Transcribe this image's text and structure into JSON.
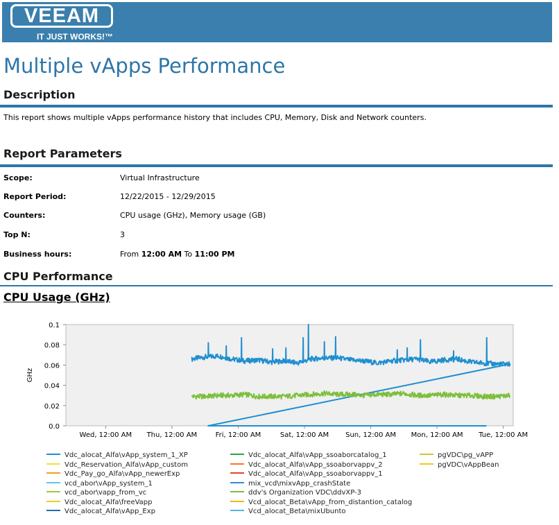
{
  "header": {
    "logo_text": "VEEAM",
    "tagline": "IT JUST WORKS!™",
    "banner_color": "#3a7fad"
  },
  "page_title": "Multiple vApps Performance",
  "description": {
    "heading": "Description",
    "text": "This report shows multiple vApps performance history that includes CPU, Memory, Disk and Network counters."
  },
  "report_parameters": {
    "heading": "Report Parameters",
    "rows": [
      {
        "label": "Scope:",
        "value": "Virtual Infrastructure"
      },
      {
        "label": "Report Period:",
        "value": "12/22/2015 - 12/29/2015"
      },
      {
        "label": "Counters:",
        "value": "CPU usage (GHz), Memory usage (GB)"
      },
      {
        "label": "Top N:",
        "value": "3"
      }
    ],
    "business_hours": {
      "label": "Business hours:",
      "prefix": "From ",
      "start": "12:00 AM",
      "middle": " To ",
      "end": "11:00 PM"
    }
  },
  "cpu_section": {
    "heading": "CPU Performance",
    "chart_title": "CPU Usage (GHz)"
  },
  "chart_data": {
    "type": "line",
    "title": "CPU Usage (GHz)",
    "ylabel": "GHz",
    "xlabel": "",
    "ylim": [
      0,
      0.1
    ],
    "y_ticks": [
      "0.0",
      "0.02",
      "0.04",
      "0.06",
      "0.08",
      "0.1"
    ],
    "x_ticks": [
      "Wed, 12:00 AM",
      "Thu, 12:00 AM",
      "Fri, 12:00 AM",
      "Sat, 12:00 AM",
      "Sun, 12:00 AM",
      "Mon, 12:00 AM",
      "Tue, 12:00 AM"
    ],
    "x_range_days": [
      -0.6,
      6.15
    ],
    "grid": false,
    "legend_position": "bottom",
    "series": [
      {
        "name": "Vdc_alocat_Alfa\\vApp_system_1_XP",
        "color": "#1f8fd0",
        "x_days": [
          1.3,
          1.5,
          1.7,
          1.9,
          2.1,
          2.3,
          2.5,
          2.7,
          2.9,
          3.1,
          3.3,
          3.5,
          3.7,
          3.9,
          4.1,
          4.3,
          4.5,
          4.7,
          4.9,
          5.1,
          5.3,
          5.5,
          5.7,
          5.9,
          6.1
        ],
        "values": [
          0.066,
          0.068,
          0.069,
          0.066,
          0.064,
          0.065,
          0.063,
          0.064,
          0.062,
          0.066,
          0.067,
          0.067,
          0.065,
          0.064,
          0.062,
          0.064,
          0.065,
          0.066,
          0.063,
          0.065,
          0.066,
          0.063,
          0.062,
          0.061,
          0.061
        ],
        "spikes": [
          {
            "x_day": 1.55,
            "value": 0.082
          },
          {
            "x_day": 1.82,
            "value": 0.079
          },
          {
            "x_day": 2.05,
            "value": 0.087
          },
          {
            "x_day": 2.52,
            "value": 0.076
          },
          {
            "x_day": 2.72,
            "value": 0.077
          },
          {
            "x_day": 2.98,
            "value": 0.087
          },
          {
            "x_day": 3.06,
            "value": 0.1
          },
          {
            "x_day": 3.3,
            "value": 0.083
          },
          {
            "x_day": 3.47,
            "value": 0.088
          },
          {
            "x_day": 4.4,
            "value": 0.075
          },
          {
            "x_day": 4.55,
            "value": 0.077
          },
          {
            "x_day": 4.75,
            "value": 0.085
          },
          {
            "x_day": 5.25,
            "value": 0.074
          },
          {
            "x_day": 5.75,
            "value": 0.087
          }
        ]
      },
      {
        "name": "ddv's Organization VDC\\ddvXP-3",
        "color": "#7dbf3c",
        "x_days": [
          1.3,
          1.5,
          1.7,
          1.9,
          2.1,
          2.3,
          2.5,
          2.7,
          2.9,
          3.1,
          3.3,
          3.5,
          3.7,
          3.9,
          4.1,
          4.3,
          4.5,
          4.7,
          4.9,
          5.1,
          5.3,
          5.5,
          5.7,
          5.9,
          6.1
        ],
        "values": [
          0.029,
          0.029,
          0.03,
          0.03,
          0.031,
          0.029,
          0.029,
          0.029,
          0.03,
          0.031,
          0.032,
          0.031,
          0.031,
          0.03,
          0.031,
          0.031,
          0.032,
          0.03,
          0.03,
          0.031,
          0.03,
          0.03,
          0.029,
          0.029,
          0.03
        ]
      }
    ]
  },
  "legend": [
    {
      "label": "Vdc_alocat_Alfa\\vApp_system_1_XP",
      "color": "#1f8fd0"
    },
    {
      "label": "Vdc_Reservation_Alfa\\vApp_custom",
      "color": "#e8e43a"
    },
    {
      "label": "Vdc_Pay_go_Alfa\\vApp_newerExp",
      "color": "#f6a01a"
    },
    {
      "label": "vcd_abor\\vApp_system_1",
      "color": "#5ec4ec"
    },
    {
      "label": "vcd_abor\\vapp_from_vc",
      "color": "#a8c832"
    },
    {
      "label": "Vdc_alocat_Alfa\\freeVapp",
      "color": "#f2cc1a"
    },
    {
      "label": "Vdc_alocat_Alfa\\vApp_Exp",
      "color": "#1e6bb0"
    },
    {
      "label": "Vdc_alocat_Alfa\\vApp_ssoaborcatalog_1",
      "color": "#2aa345"
    },
    {
      "label": "Vdc_alocat_Alfa\\vApp_ssoaborvappv_2",
      "color": "#f07a2a"
    },
    {
      "label": "Vdc_alocat_Alfa\\vApp_ssoaborvappv_1",
      "color": "#e0442a"
    },
    {
      "label": "mix_vcd\\mixvApp_crashState",
      "color": "#2f8cc8"
    },
    {
      "label": "ddv's Organization VDC\\ddvXP-3",
      "color": "#7dbf3c"
    },
    {
      "label": "Vcd_alocat_Beta\\vApp_from_distantion_catalog",
      "color": "#f6b21c"
    },
    {
      "label": "Vcd_alocat_Beta\\mixUbunto",
      "color": "#4db8e0"
    },
    {
      "label": "pgVDC\\pg_vAPP",
      "color": "#c8c83a"
    },
    {
      "label": "pgVDC\\vAppBean",
      "color": "#f6c81a"
    }
  ]
}
